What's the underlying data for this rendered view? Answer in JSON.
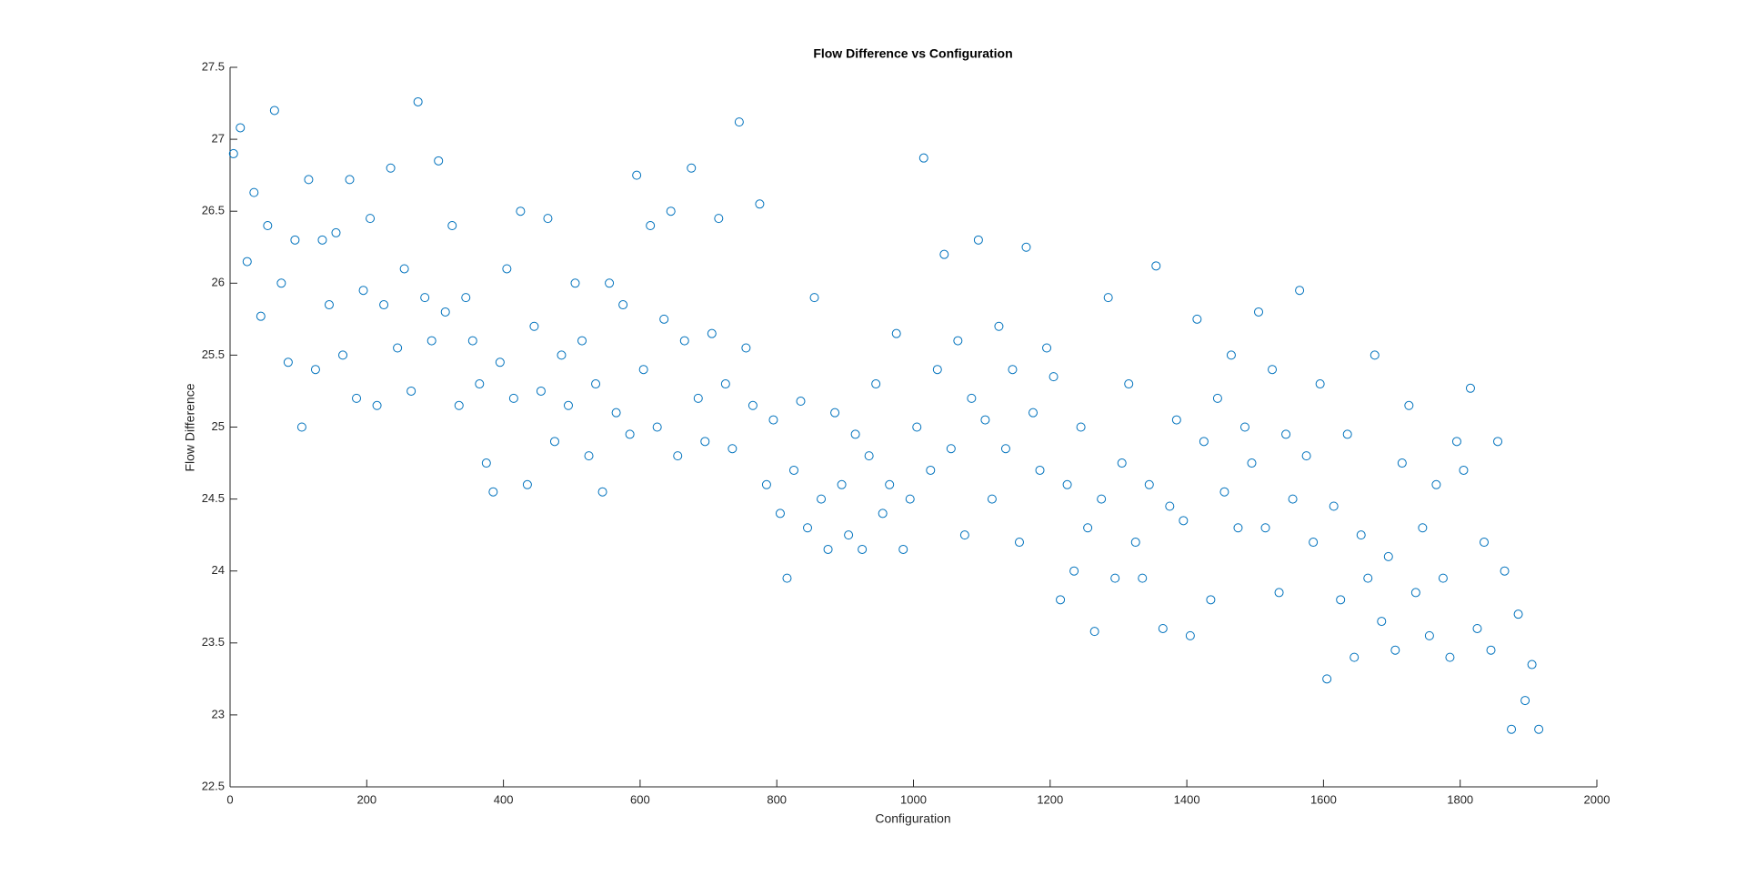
{
  "chart_data": {
    "type": "scatter",
    "title": "Flow Difference vs Configuration",
    "xlabel": "Configuration",
    "ylabel": "Flow Difference",
    "color": "#0072bd",
    "xlim": [
      0,
      2000
    ],
    "xticks": [
      0,
      200,
      400,
      600,
      800,
      1000,
      1200,
      1400,
      1600,
      1800,
      2000
    ],
    "ylim": [
      22.5,
      27.5
    ],
    "yticks": [
      22.5,
      23,
      23.5,
      24,
      24.5,
      25,
      25.5,
      26,
      26.5,
      27,
      27.5
    ],
    "x": [
      5,
      15,
      25,
      35,
      45,
      55,
      65,
      75,
      85,
      95,
      105,
      115,
      125,
      135,
      145,
      155,
      165,
      175,
      185,
      195,
      205,
      215,
      225,
      235,
      245,
      255,
      265,
      275,
      285,
      295,
      305,
      315,
      325,
      335,
      345,
      355,
      365,
      375,
      385,
      395,
      405,
      415,
      425,
      435,
      445,
      455,
      465,
      475,
      485,
      495,
      505,
      515,
      525,
      535,
      545,
      555,
      565,
      575,
      585,
      595,
      605,
      615,
      625,
      635,
      645,
      655,
      665,
      675,
      685,
      695,
      705,
      715,
      725,
      735,
      745,
      755,
      765,
      775,
      785,
      795,
      805,
      815,
      825,
      835,
      845,
      855,
      865,
      875,
      885,
      895,
      905,
      915,
      925,
      935,
      945,
      955,
      965,
      975,
      985,
      995,
      1005,
      1015,
      1025,
      1035,
      1045,
      1055,
      1065,
      1075,
      1085,
      1095,
      1105,
      1115,
      1125,
      1135,
      1145,
      1155,
      1165,
      1175,
      1185,
      1195,
      1205,
      1215,
      1225,
      1235,
      1245,
      1255,
      1265,
      1275,
      1285,
      1295,
      1305,
      1315,
      1325,
      1335,
      1345,
      1355,
      1365,
      1375,
      1385,
      1395,
      1405,
      1415,
      1425,
      1435,
      1445,
      1455,
      1465,
      1475,
      1485,
      1495,
      1505,
      1515,
      1525,
      1535,
      1545,
      1555,
      1565,
      1575,
      1585,
      1595,
      1605,
      1615,
      1625,
      1635,
      1645,
      1655,
      1665,
      1675,
      1685,
      1695,
      1705,
      1715,
      1725,
      1735,
      1745,
      1755,
      1765,
      1775,
      1785,
      1795,
      1805,
      1815,
      1825,
      1835,
      1845,
      1855,
      1865,
      1875,
      1885,
      1895,
      1905,
      1915
    ],
    "y": [
      26.9,
      27.08,
      26.15,
      26.63,
      25.77,
      26.4,
      27.2,
      26.0,
      25.45,
      26.3,
      25.0,
      26.72,
      25.4,
      26.3,
      25.85,
      26.35,
      25.5,
      26.72,
      25.2,
      25.95,
      26.45,
      25.15,
      25.85,
      26.8,
      25.55,
      26.1,
      25.25,
      27.26,
      25.9,
      25.6,
      26.85,
      25.8,
      26.4,
      25.15,
      25.9,
      25.6,
      25.3,
      24.75,
      24.55,
      25.45,
      26.1,
      25.2,
      26.5,
      24.6,
      25.7,
      25.25,
      26.45,
      24.9,
      25.5,
      25.15,
      26.0,
      25.6,
      24.8,
      25.3,
      24.55,
      26.0,
      25.1,
      25.85,
      24.95,
      26.75,
      25.4,
      26.4,
      25.0,
      25.75,
      26.5,
      24.8,
      25.6,
      26.8,
      25.2,
      24.9,
      25.65,
      26.45,
      25.3,
      24.85,
      27.12,
      25.55,
      25.15,
      26.55,
      24.6,
      25.05,
      24.4,
      23.95,
      24.7,
      25.18,
      24.3,
      25.9,
      24.5,
      24.15,
      25.1,
      24.6,
      24.25,
      24.95,
      24.15,
      24.8,
      25.3,
      24.4,
      24.6,
      25.65,
      24.15,
      24.5,
      25.0,
      26.87,
      24.7,
      25.4,
      26.2,
      24.85,
      25.6,
      24.25,
      25.2,
      26.3,
      25.05,
      24.5,
      25.7,
      24.85,
      25.4,
      24.2,
      26.25,
      25.1,
      24.7,
      25.55,
      25.35,
      23.8,
      24.6,
      24.0,
      25.0,
      24.3,
      23.58,
      24.5,
      25.9,
      23.95,
      24.75,
      25.3,
      24.2,
      23.95,
      24.6,
      26.12,
      23.6,
      24.45,
      25.05,
      24.35,
      23.55,
      25.75,
      24.9,
      23.8,
      25.2,
      24.55,
      25.5,
      24.3,
      25.0,
      24.75,
      25.8,
      24.3,
      25.4,
      23.85,
      24.95,
      24.5,
      25.95,
      24.8,
      24.2,
      25.3,
      23.25,
      24.45,
      23.8,
      24.95,
      23.4,
      24.25,
      23.95,
      25.5,
      23.65,
      24.1,
      23.45,
      24.75,
      25.15,
      23.85,
      24.3,
      23.55,
      24.6,
      23.95,
      23.4,
      24.9,
      24.7,
      25.27,
      23.6,
      24.2,
      23.45,
      24.9,
      24.0,
      22.9,
      23.7,
      23.1,
      23.35,
      22.9
    ]
  }
}
